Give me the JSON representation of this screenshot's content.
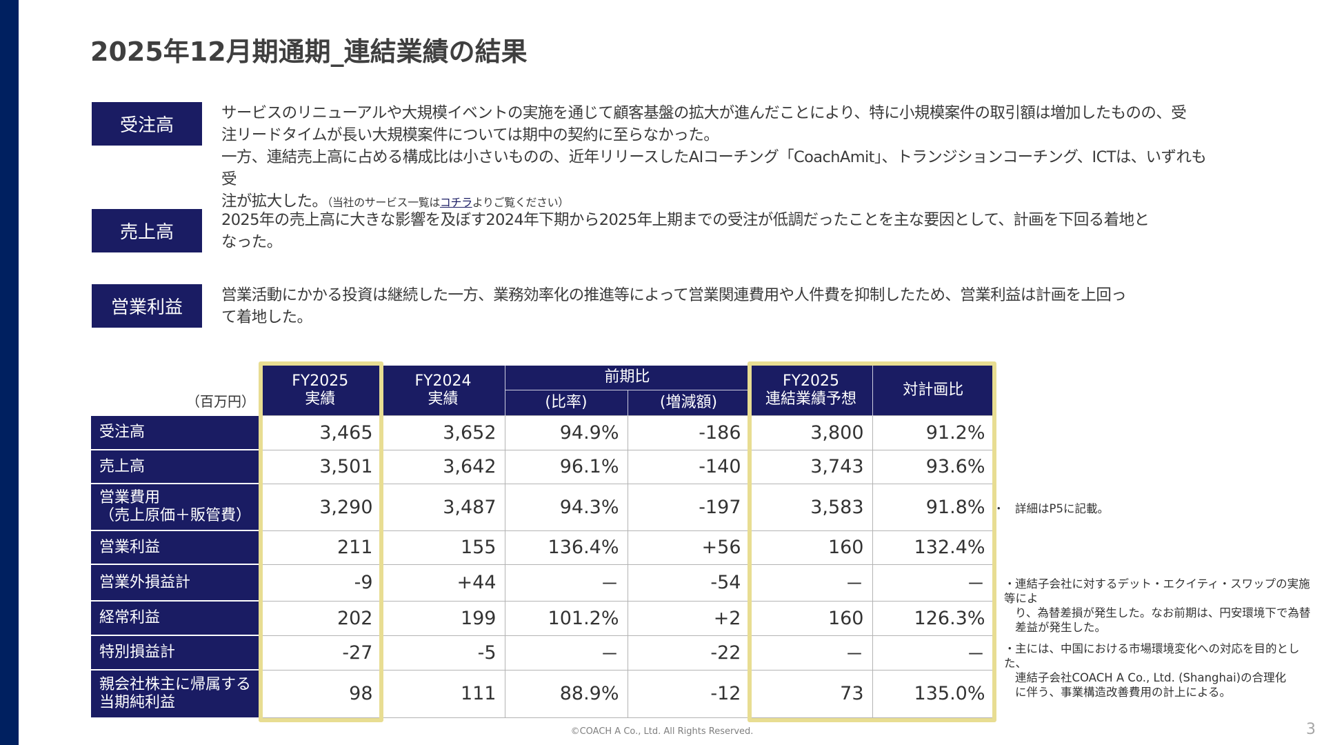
{
  "page": {
    "title": "2025年12月期通期_連結業績の結果",
    "page_number": "3",
    "footer": "©COACH A Co., Ltd. All Rights Reserved.",
    "colors": {
      "navy": "#1a1c63",
      "sidebar": "#002060",
      "highlight_frame": "#e8dd92",
      "text": "#3a3a3a"
    }
  },
  "sections": [
    {
      "label": "受注高",
      "lines": [
        "サービスのリニューアルや大規模イベントの実施を通じて顧客基盤の拡大が進んだことにより、特に小規模案件の取引額は増加したものの、受",
        "注リードタイムが長い大規模案件については期中の契約に至らなかった。",
        "一方、連結売上高に占める構成比は小さいものの、近年リリースしたAIコーチング「CoachAmit」、トランジションコーチング、ICTは、いずれも受",
        "注が拡大した。"
      ],
      "note_prefix": "（当社のサービス一覧は",
      "note_link": "コチラ",
      "note_suffix": "よりご覧ください）"
    },
    {
      "label": "売上高",
      "lines": [
        "2025年の売上高に大きな影響を及ぼす2024年下期から2025年上期までの受注が低調だったことを主な要因として、計画を下回る着地と",
        "なった。"
      ]
    },
    {
      "label": "営業利益",
      "lines": [
        "営業活動にかかる投資は継続した一方、業務効率化の推進等によって営業関連費用や人件費を抑制したため、営業利益は計画を上回っ",
        "て着地した。"
      ]
    }
  ],
  "table": {
    "unit": "（百万円）",
    "headers": {
      "fy2025_actual": [
        "FY2025",
        "実績"
      ],
      "fy2024_actual": [
        "FY2024",
        "実績"
      ],
      "yoy_group": "前期比",
      "yoy_ratio": "(比率)",
      "yoy_diff": "(増減額)",
      "forecast": [
        "FY2025",
        "連結業績予想"
      ],
      "vs_plan": "対計画比"
    },
    "rows": [
      {
        "label": [
          "受注高"
        ],
        "fy2025": "3,465",
        "fy2024": "3,652",
        "ratio": "94.9%",
        "diff": "-186",
        "forecast": "3,800",
        "vs_plan": "91.2%"
      },
      {
        "label": [
          "売上高"
        ],
        "fy2025": "3,501",
        "fy2024": "3,642",
        "ratio": "96.1%",
        "diff": "-140",
        "forecast": "3,743",
        "vs_plan": "93.6%"
      },
      {
        "label": [
          "営業費用",
          "（売上原価＋販管費）"
        ],
        "fy2025": "3,290",
        "fy2024": "3,487",
        "ratio": "94.3%",
        "diff": "-197",
        "forecast": "3,583",
        "vs_plan": "91.8%"
      },
      {
        "label": [
          "営業利益"
        ],
        "fy2025": "211",
        "fy2024": "155",
        "ratio": "136.4%",
        "diff": "+56",
        "forecast": "160",
        "vs_plan": "132.4%"
      },
      {
        "label": [
          "営業外損益計"
        ],
        "fy2025": "-9",
        "fy2024": "+44",
        "ratio": "－",
        "diff": "-54",
        "forecast": "－",
        "vs_plan": "－"
      },
      {
        "label": [
          "経常利益"
        ],
        "fy2025": "202",
        "fy2024": "199",
        "ratio": "101.2%",
        "diff": "+2",
        "forecast": "160",
        "vs_plan": "126.3%"
      },
      {
        "label": [
          "特別損益計"
        ],
        "fy2025": "-27",
        "fy2024": "-5",
        "ratio": "－",
        "diff": "-22",
        "forecast": "－",
        "vs_plan": "－"
      },
      {
        "label": [
          "親会社株主に帰属する",
          "当期純利益"
        ],
        "fy2025": "98",
        "fy2024": "111",
        "ratio": "88.9%",
        "diff": "-12",
        "forecast": "73",
        "vs_plan": "135.0%"
      }
    ]
  },
  "notes": [
    {
      "bullet": "・",
      "lines": [
        "詳細はP5に記載。"
      ]
    },
    {
      "bullet": "・",
      "lines": [
        "連結子会社に対するデット・エクイティ・スワップの実施等によ",
        "り、為替差損が発生した。なお前期は、円安環境下で為替",
        "差益が発生した。"
      ]
    },
    {
      "bullet": "・",
      "lines": [
        "主には、中国における市場環境変化への対応を目的とした、",
        "連結子会社COACH A Co., Ltd. (Shanghai)の合理化",
        "に伴う、事業構造改善費用の計上による。"
      ]
    }
  ]
}
